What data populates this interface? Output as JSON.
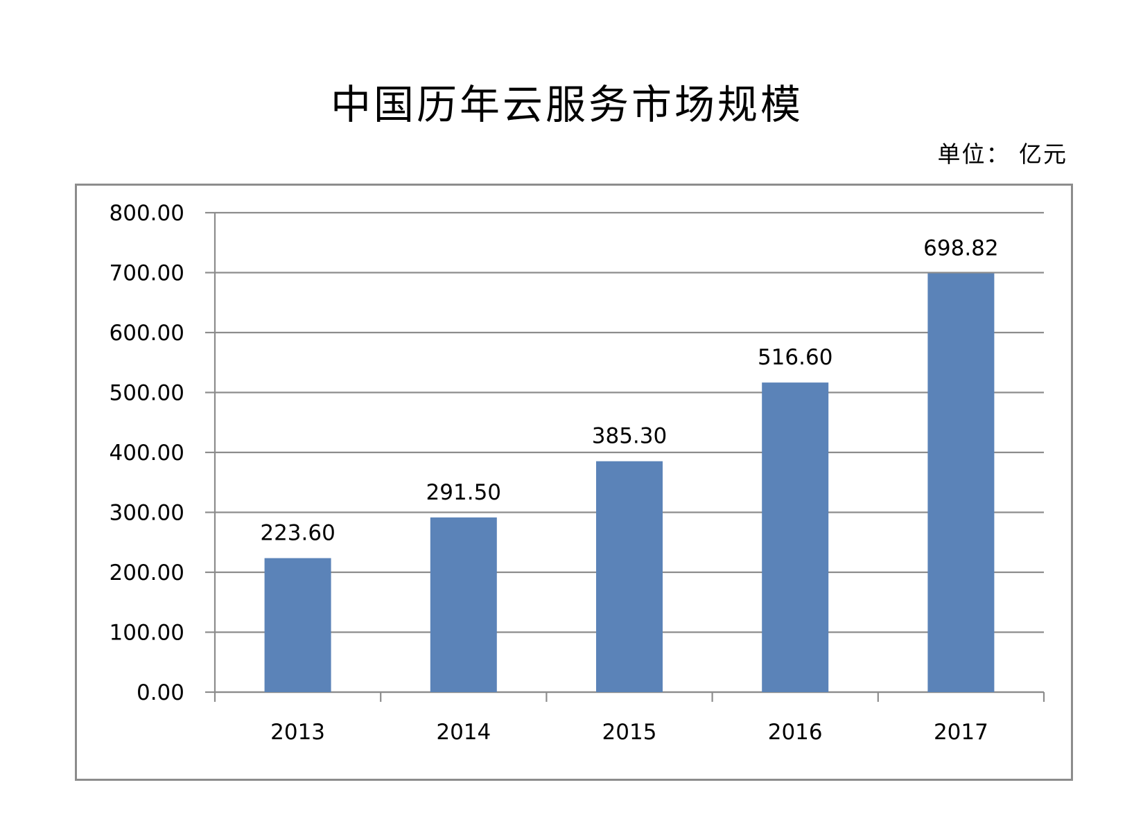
{
  "chart_title": "中国历年云服务市场规模",
  "unit_label": "单位： 亿元",
  "chart_data": {
    "type": "bar",
    "title": "中国历年云服务市场规模",
    "unit": "单位： 亿元",
    "categories": [
      "2013",
      "2014",
      "2015",
      "2016",
      "2017"
    ],
    "values": [
      223.6,
      291.5,
      385.3,
      516.6,
      698.82
    ],
    "value_labels": [
      "223.60",
      "291.50",
      "385.30",
      "516.60",
      "698.82"
    ],
    "ylim": [
      0,
      800
    ],
    "y_ticks": [
      0,
      100,
      200,
      300,
      400,
      500,
      600,
      700,
      800
    ],
    "y_tick_labels": [
      "0.00",
      "100.00",
      "200.00",
      "300.00",
      "400.00",
      "500.00",
      "600.00",
      "700.00",
      "800.00"
    ],
    "grid": true,
    "legend": "none",
    "bar_color": "#5b83b8",
    "grid_color": "#8c8c8c"
  }
}
